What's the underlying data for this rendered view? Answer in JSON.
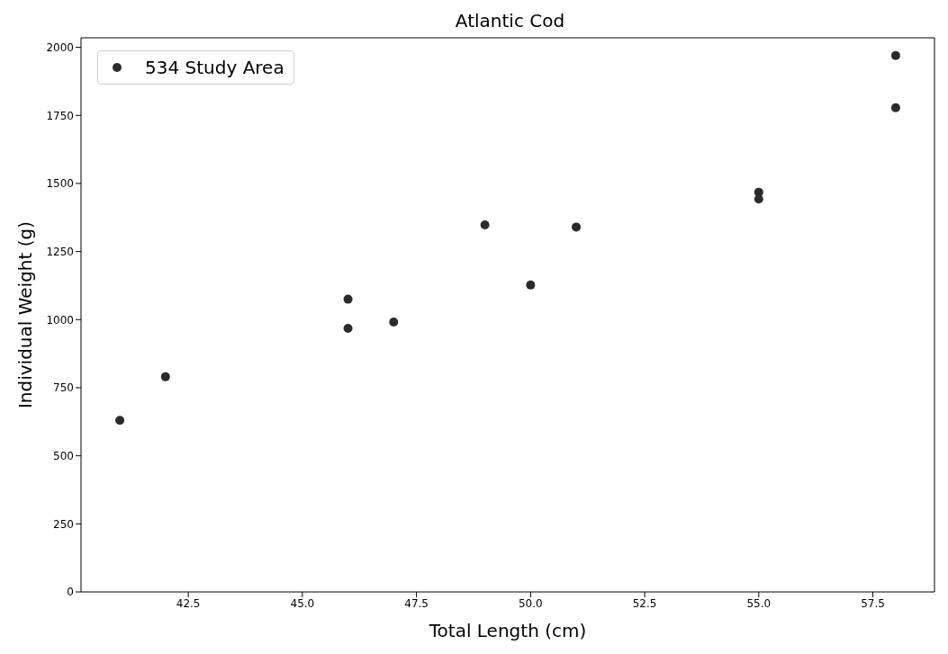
{
  "chart_data": {
    "type": "scatter",
    "title": "Atlantic Cod",
    "xlabel": "Total Length (cm)",
    "ylabel": "Individual Weight (g)",
    "x": [
      41,
      42,
      46,
      46,
      47,
      49,
      50,
      51,
      55,
      55,
      58,
      58
    ],
    "series": [
      {
        "name": "534 Study Area",
        "color": "#2b2b2b",
        "values": [
          630,
          790,
          1075,
          968,
          991,
          1348,
          1127,
          1340,
          1468,
          1443,
          1970,
          1778
        ]
      }
    ],
    "xlim": [
      40.15,
      58.85
    ],
    "xticks": [
      {
        "value": 42.5,
        "label": "42.5"
      },
      {
        "value": 45,
        "label": "45.0"
      },
      {
        "value": 47.5,
        "label": "47.5"
      },
      {
        "value": 50,
        "label": "50.0"
      },
      {
        "value": 52.5,
        "label": "52.5"
      },
      {
        "value": 55,
        "label": "55.0"
      },
      {
        "value": 57.5,
        "label": "57.5"
      }
    ],
    "ylim": [
      0,
      2035
    ],
    "yticks": [
      0,
      250,
      500,
      750,
      1000,
      1250,
      1500,
      1750,
      2000
    ],
    "grid": false,
    "legend": "top left",
    "marker": "circle"
  }
}
